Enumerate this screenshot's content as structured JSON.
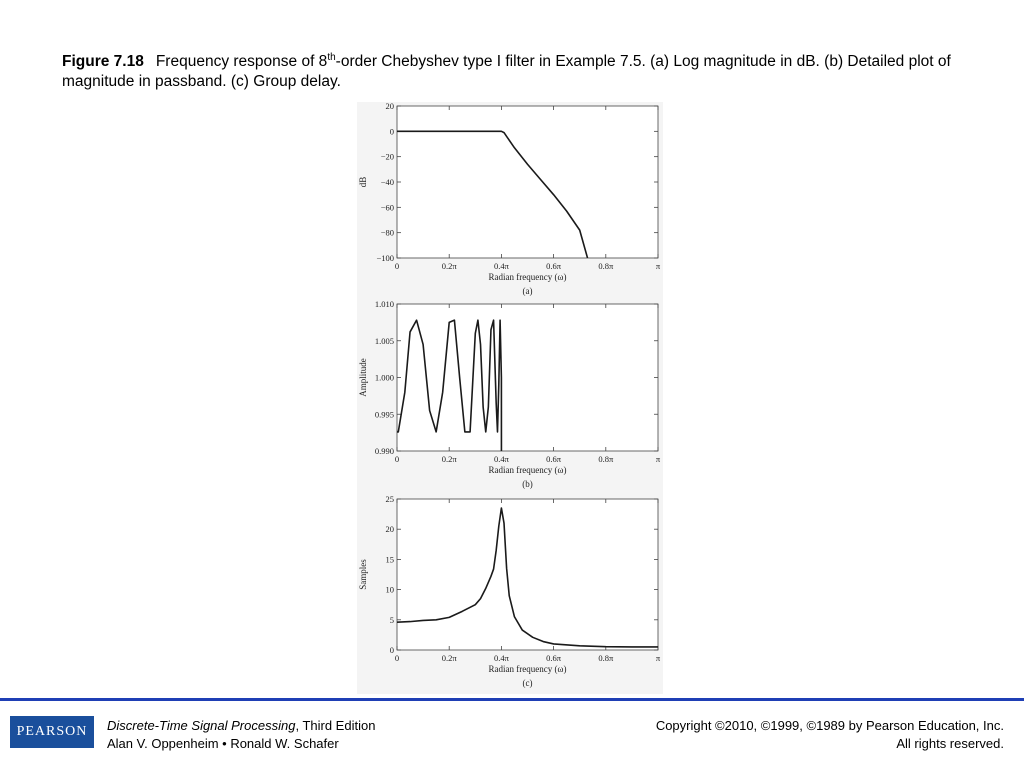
{
  "caption": {
    "figure_label": "Figure 7.18",
    "text_part1": "Frequency response of 8",
    "superscript": "th",
    "text_part2": "-order Chebyshev type I filter in Example 7.5. (a) Log magnitude in dB. (b) Detailed plot of magnitude in passband. (c) Group delay."
  },
  "chart_data": [
    {
      "type": "line",
      "panel_label": "(a)",
      "xlabel": "Radian frequency (ω)",
      "ylabel": "dB",
      "x_ticks": [
        "0",
        "0.2π",
        "0.4π",
        "0.6π",
        "0.8π",
        "π"
      ],
      "x_tick_values": [
        0,
        0.2,
        0.4,
        0.6,
        0.8,
        1.0
      ],
      "y_ticks": [
        "20",
        "0",
        "−20",
        "−40",
        "−60",
        "−80",
        "−100"
      ],
      "y_tick_values": [
        20,
        0,
        -20,
        -40,
        -60,
        -80,
        -100
      ],
      "xlim": [
        0,
        1.0
      ],
      "ylim": [
        -100,
        20
      ],
      "series": [
        {
          "x": [
            0,
            0.38,
            0.4,
            0.41,
            0.42,
            0.45,
            0.5,
            0.55,
            0.6,
            0.65,
            0.7,
            0.73
          ],
          "y": [
            0,
            0,
            0,
            -1,
            -4,
            -13,
            -26,
            -38,
            -50,
            -63,
            -78,
            -100
          ]
        }
      ]
    },
    {
      "type": "line",
      "panel_label": "(b)",
      "xlabel": "Radian frequency (ω)",
      "ylabel": "Amplitude",
      "x_ticks": [
        "0",
        "0.2π",
        "0.4π",
        "0.6π",
        "0.8π",
        "π"
      ],
      "x_tick_values": [
        0,
        0.2,
        0.4,
        0.6,
        0.8,
        1.0
      ],
      "y_ticks": [
        "1.010",
        "1.005",
        "1.000",
        "0.995",
        "0.990"
      ],
      "y_tick_values": [
        1.01,
        1.005,
        1.0,
        0.995,
        0.99
      ],
      "xlim": [
        0,
        1.0
      ],
      "ylim": [
        0.99,
        1.01
      ],
      "series": [
        {
          "x": [
            0,
            0.005,
            0.03,
            0.05,
            0.075,
            0.1,
            0.125,
            0.15,
            0.175,
            0.2,
            0.22,
            0.24,
            0.26,
            0.28,
            0.3,
            0.31,
            0.32,
            0.33,
            0.34,
            0.35,
            0.36,
            0.37,
            0.38,
            0.385,
            0.39,
            0.395,
            0.4,
            0.4001
          ],
          "y": [
            0.9926,
            0.9926,
            0.998,
            1.0062,
            1.0078,
            1.0045,
            0.9955,
            0.9926,
            0.998,
            1.0075,
            1.0078,
            1.0,
            0.9926,
            0.9926,
            1.006,
            1.0078,
            1.0045,
            0.996,
            0.9926,
            0.996,
            1.0065,
            1.0078,
            0.9965,
            0.9926,
            0.999,
            1.0078,
            1.0,
            0.99
          ]
        }
      ]
    },
    {
      "type": "line",
      "panel_label": "(c)",
      "xlabel": "Radian frequency (ω)",
      "ylabel": "Samples",
      "x_ticks": [
        "0",
        "0.2π",
        "0.4π",
        "0.6π",
        "0.8π",
        "π"
      ],
      "x_tick_values": [
        0,
        0.2,
        0.4,
        0.6,
        0.8,
        1.0
      ],
      "y_ticks": [
        "25",
        "20",
        "15",
        "10",
        "5",
        "0"
      ],
      "y_tick_values": [
        25,
        20,
        15,
        10,
        5,
        0
      ],
      "xlim": [
        0,
        1.0
      ],
      "ylim": [
        0,
        25
      ],
      "series": [
        {
          "x": [
            0,
            0.05,
            0.1,
            0.15,
            0.2,
            0.25,
            0.3,
            0.32,
            0.34,
            0.36,
            0.37,
            0.38,
            0.39,
            0.4,
            0.41,
            0.42,
            0.43,
            0.45,
            0.48,
            0.52,
            0.56,
            0.6,
            0.7,
            0.8,
            0.9,
            1.0
          ],
          "y": [
            4.6,
            4.7,
            4.9,
            5.0,
            5.4,
            6.4,
            7.5,
            8.5,
            10.2,
            12.2,
            13.4,
            16.5,
            20.5,
            23.5,
            21.0,
            13.5,
            9.0,
            5.5,
            3.3,
            2.1,
            1.4,
            1.0,
            0.7,
            0.55,
            0.5,
            0.5
          ]
        }
      ]
    }
  ],
  "footer": {
    "logo_text": "PEARSON",
    "book_title": "Discrete-Time Signal Processing",
    "edition": ", Third Edition",
    "authors": "Alan V. Oppenheim • Ronald W. Schafer",
    "copyright": "Copyright ©2010, ©1999, ©1989 by Pearson Education, Inc.",
    "rights": "All rights reserved."
  },
  "colors": {
    "footer_rule": "#1f3fb5",
    "logo_bg": "#1a4f9c",
    "panel_bg": "#f4f4f4"
  }
}
